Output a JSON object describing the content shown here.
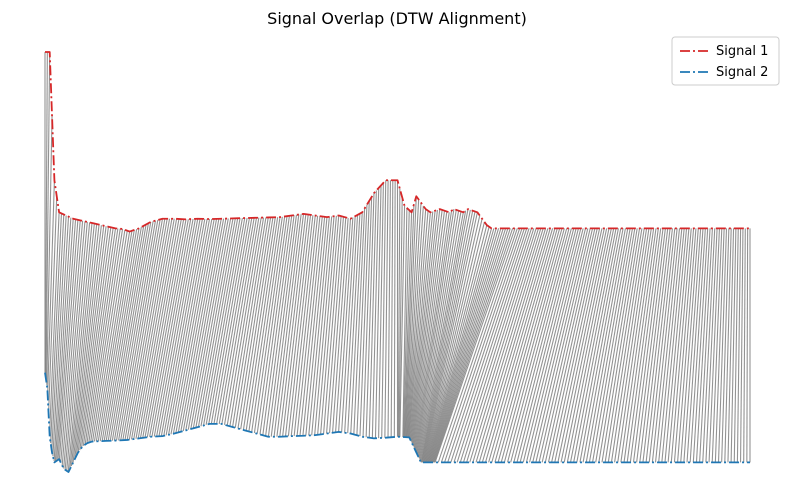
{
  "chart_data": {
    "type": "line",
    "title": "Signal Overlap (DTW Alignment)",
    "xlabel": "",
    "ylabel": "",
    "axes_visible": false,
    "grid": false,
    "legend_position": "top-right",
    "series": [
      {
        "name": "Signal 1",
        "color": "#d62728",
        "line_style": "dash-dot",
        "x": [
          0,
          2,
          4,
          6,
          9,
          12,
          15,
          18,
          21,
          24,
          27,
          30,
          33,
          36,
          40,
          45,
          50,
          55,
          60,
          65,
          70,
          75,
          80,
          85,
          90,
          95,
          100,
          105,
          110,
          115,
          120,
          125,
          130,
          135,
          140,
          145,
          150,
          153,
          156,
          158,
          160,
          162,
          164,
          166,
          168,
          170,
          172,
          174,
          176,
          178,
          180,
          182,
          184,
          186,
          188,
          190,
          192,
          194,
          196,
          198,
          200,
          202,
          205,
          210,
          215,
          220,
          225,
          230,
          235,
          240,
          245,
          250,
          255,
          260,
          265,
          270,
          275,
          280,
          285,
          290,
          295,
          300
        ],
        "y": [
          1.0,
          1.0,
          0.6,
          0.5,
          0.49,
          0.48,
          0.475,
          0.47,
          0.465,
          0.46,
          0.455,
          0.45,
          0.448,
          0.44,
          0.45,
          0.47,
          0.48,
          0.48,
          0.478,
          0.48,
          0.479,
          0.48,
          0.481,
          0.482,
          0.483,
          0.484,
          0.485,
          0.49,
          0.495,
          0.49,
          0.485,
          0.49,
          0.48,
          0.5,
          0.56,
          0.6,
          0.6,
          0.52,
          0.5,
          0.55,
          0.53,
          0.51,
          0.5,
          0.505,
          0.51,
          0.505,
          0.5,
          0.51,
          0.505,
          0.5,
          0.51,
          0.505,
          0.5,
          0.48,
          0.46,
          0.45,
          0.45,
          0.45,
          0.45,
          0.45,
          0.45,
          0.45,
          0.45,
          0.45,
          0.45,
          0.45,
          0.45,
          0.45,
          0.45,
          0.45,
          0.45,
          0.45,
          0.45,
          0.45,
          0.45,
          0.45,
          0.45,
          0.45,
          0.45,
          0.45,
          0.45,
          0.45
        ]
      },
      {
        "name": "Signal 2",
        "color": "#1f77b4",
        "line_style": "dash-dot",
        "x": [
          0,
          1,
          2,
          3,
          4,
          6,
          8,
          10,
          12,
          14,
          16,
          18,
          20,
          23,
          26,
          30,
          35,
          40,
          45,
          50,
          55,
          60,
          65,
          70,
          75,
          80,
          85,
          90,
          95,
          100,
          105,
          110,
          115,
          120,
          125,
          130,
          135,
          140,
          145,
          150,
          155,
          160,
          165,
          170,
          175,
          180,
          185,
          190,
          195,
          200,
          205,
          210,
          215,
          220,
          225,
          230,
          235,
          240,
          245,
          250,
          255,
          260,
          265,
          270,
          275,
          280,
          285,
          290,
          295,
          300
        ],
        "y": [
          0.0,
          -0.05,
          -0.2,
          -0.25,
          -0.28,
          -0.27,
          -0.3,
          -0.31,
          -0.28,
          -0.25,
          -0.23,
          -0.22,
          -0.215,
          -0.214,
          -0.213,
          -0.212,
          -0.21,
          -0.205,
          -0.2,
          -0.198,
          -0.19,
          -0.18,
          -0.17,
          -0.16,
          -0.16,
          -0.17,
          -0.18,
          -0.19,
          -0.2,
          -0.2,
          -0.198,
          -0.197,
          -0.195,
          -0.19,
          -0.185,
          -0.19,
          -0.2,
          -0.205,
          -0.203,
          -0.2,
          -0.202,
          -0.28,
          -0.28,
          -0.28,
          -0.28,
          -0.28,
          -0.28,
          -0.28,
          -0.28,
          -0.28,
          -0.28,
          -0.28,
          -0.28,
          -0.28,
          -0.28,
          -0.28,
          -0.28,
          -0.28,
          -0.28,
          -0.28,
          -0.28,
          -0.28,
          -0.28,
          -0.28,
          -0.28,
          -0.28,
          -0.28,
          -0.28,
          -0.28,
          -0.28
        ]
      }
    ],
    "alignment_color": "#808080"
  }
}
